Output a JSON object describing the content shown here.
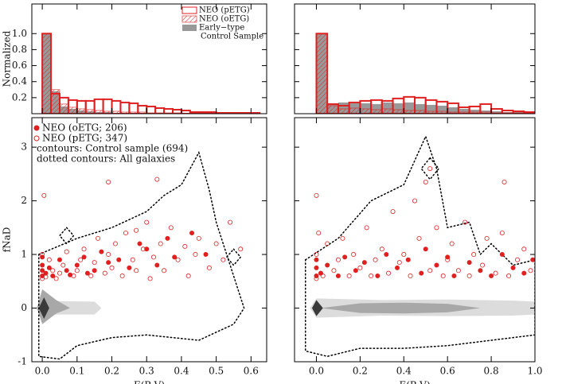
{
  "chart_data": [
    {
      "type": "histogram",
      "ylabel": "Normalized",
      "xlim": [
        -0.03,
        0.645
      ],
      "ylim": [
        0,
        1.37
      ],
      "xticks": [
        {
          "value": 0,
          "label": "0.0"
        },
        0.1,
        0.2,
        0.3,
        0.4,
        0.5,
        0.6
      ],
      "yticks": [
        0.2,
        0.4,
        0.6,
        0.8,
        {
          "value": 1,
          "label": "1.0"
        }
      ],
      "show_ytick_labels": true,
      "bins": [
        0,
        0.025,
        0.05,
        0.075,
        0.1,
        0.125,
        0.15,
        0.175,
        0.2,
        0.225,
        0.25,
        0.275,
        0.3,
        0.325,
        0.35,
        0.375,
        0.4,
        0.425,
        0.45,
        0.475,
        0.5,
        0.525,
        0.55,
        0.575,
        0.6,
        0.625
      ],
      "series": [
        {
          "name": [
            "Early−type",
            "Control Sample"
          ],
          "color": "#999999",
          "style": "filled",
          "values": [
            1.0,
            0.28,
            0.09,
            0.06,
            0.04,
            0.03,
            0.02,
            0.02,
            0.01,
            0.01,
            0.01,
            0.01,
            0.01,
            0,
            0,
            0,
            0,
            0,
            0,
            0,
            0,
            0,
            0,
            0,
            0
          ]
        },
        {
          "name": [
            "NEO (oETG)"
          ],
          "color": "#e02020",
          "style": "hatch",
          "values": [
            1.0,
            0.3,
            0.12,
            0.08,
            0.06,
            0.05,
            0.04,
            0.03,
            0.03,
            0.02,
            0.02,
            0.02,
            0.01,
            0.01,
            0.01,
            0.01,
            0,
            0,
            0,
            0,
            0,
            0,
            0,
            0,
            0
          ]
        },
        {
          "name": [
            "NEO (pETG)"
          ],
          "color": "#e02020",
          "style": "outline",
          "values": [
            1.0,
            0.25,
            0.2,
            0.17,
            0.16,
            0.16,
            0.18,
            0.18,
            0.16,
            0.14,
            0.13,
            0.1,
            0.09,
            0.07,
            0.06,
            0.05,
            0.04,
            0.02,
            0.02,
            0.02,
            0.01,
            0.01,
            0.01,
            0.01,
            0.01
          ]
        }
      ]
    },
    {
      "type": "histogram",
      "xlim": [
        -0.1,
        1.0
      ],
      "ylim": [
        0,
        1.37
      ],
      "xticks": [
        {
          "value": 0,
          "label": "0.0"
        },
        0.2,
        0.4,
        0.6,
        0.8,
        {
          "value": 1,
          "label": "1.0"
        }
      ],
      "yticks": [
        0.2,
        0.4,
        0.6,
        0.8,
        {
          "value": 1,
          "label": "1.0"
        }
      ],
      "show_ytick_labels": false,
      "bins": [
        0,
        0.05,
        0.1,
        0.15,
        0.2,
        0.25,
        0.3,
        0.35,
        0.4,
        0.45,
        0.5,
        0.55,
        0.6,
        0.65,
        0.7,
        0.75,
        0.8,
        0.85,
        0.9,
        0.95,
        1.0
      ],
      "series": [
        {
          "color": "#999999",
          "style": "filled",
          "values": [
            1.0,
            0.12,
            0.14,
            0.13,
            0.13,
            0.12,
            0.14,
            0.13,
            0.14,
            0.12,
            0.11,
            0.1,
            0.08,
            0.06,
            0.05,
            0.04,
            0.03,
            0.02,
            0.02,
            0.01
          ]
        },
        {
          "color": "#e02020",
          "style": "hatch",
          "values": [
            1.0,
            0.1,
            0.06,
            0.07,
            0.06,
            0.05,
            0.06,
            0.05,
            0.04,
            0.04,
            0.03,
            0.03,
            0.02,
            0.02,
            0.02,
            0.02,
            0.01,
            0.01,
            0.01,
            0.01
          ]
        },
        {
          "color": "#e02020",
          "style": "outline",
          "values": [
            1.0,
            0.12,
            0.1,
            0.14,
            0.16,
            0.17,
            0.16,
            0.19,
            0.21,
            0.2,
            0.17,
            0.15,
            0.13,
            0.08,
            0.09,
            0.12,
            0.06,
            0.04,
            0.03,
            0.02
          ]
        }
      ]
    },
    {
      "type": "scatter",
      "xlabel": "E(B-V)",
      "ylabel": "fNaD",
      "xlim": [
        -0.03,
        0.645
      ],
      "ylim": [
        -1,
        3.55
      ],
      "xticks": [
        {
          "value": 0,
          "label": "0.0"
        },
        0.1,
        0.2,
        0.3,
        0.4,
        0.5,
        0.6
      ],
      "yticks": [
        -1,
        0,
        1,
        2,
        3
      ],
      "show_ytick_labels": true,
      "annotations": [
        "contours: Control sample (694)",
        "dotted contours: All galaxies"
      ],
      "contours": [
        {
          "style": "filled",
          "color": "#dcdcdc",
          "x": [
            -0.02,
            0.0,
            0.05,
            0.15,
            0.17,
            0.15,
            0.05,
            0.0
          ],
          "y": [
            0,
            0.15,
            0.13,
            0.12,
            0,
            -0.12,
            -0.12,
            -0.15
          ]
        },
        {
          "style": "filled",
          "color": "#a8a8a8",
          "x": [
            -0.015,
            0.0,
            0.04,
            0.08,
            0.04,
            0.0
          ],
          "y": [
            0,
            0.35,
            0.15,
            0,
            -0.1,
            -0.3
          ]
        },
        {
          "style": "filled",
          "color": "#3a3a3a",
          "x": [
            -0.01,
            0.005,
            0.02,
            0.005
          ],
          "y": [
            0,
            0.2,
            0,
            -0.2
          ]
        },
        {
          "style": "dotted",
          "color": "#000000",
          "x": [
            -0.01,
            0.1,
            0.2,
            0.3,
            0.35,
            0.4,
            0.45,
            0.48,
            0.5,
            0.58,
            0.55,
            0.45,
            0.3,
            0.2,
            0.1,
            0.05,
            -0.01
          ],
          "y": [
            1.0,
            1.3,
            1.5,
            1.8,
            2.1,
            2.3,
            2.9,
            2.2,
            1.6,
            0.0,
            -0.3,
            -0.6,
            -0.5,
            -0.55,
            -0.7,
            -0.95,
            -0.9
          ]
        },
        {
          "style": "dotted",
          "color": "#000000",
          "x": [
            0.07,
            0.09,
            0.07,
            0.05
          ],
          "y": [
            1.5,
            1.35,
            1.2,
            1.35
          ]
        },
        {
          "style": "dotted",
          "color": "#000000",
          "x": [
            0.55,
            0.57,
            0.55,
            0.53
          ],
          "y": [
            1.1,
            0.95,
            0.8,
            0.95
          ]
        }
      ],
      "series": [
        {
          "name": "NEO (oETG; 206)",
          "color": "#e02020",
          "marker": "filled",
          "x": [
            0,
            0,
            0,
            0,
            0.01,
            0.02,
            0.03,
            0.05,
            0.07,
            0.08,
            0.1,
            0.12,
            0.13,
            0.15,
            0.17,
            0.19,
            0.22,
            0.25,
            0.28,
            0.3,
            0.33,
            0.36,
            0.38,
            0.43,
            0.47
          ],
          "y": [
            0.6,
            0.7,
            0.8,
            0.95,
            0.65,
            0.75,
            0.6,
            0.9,
            0.7,
            0.62,
            0.8,
            0.95,
            0.65,
            0.7,
            1.05,
            0.85,
            0.9,
            0.75,
            1.2,
            1.1,
            0.8,
            1.3,
            0.95,
            1.4,
            1.0
          ]
        },
        {
          "name": "NEO (pETG; 347)",
          "color": "#e02020",
          "marker": "open",
          "x": [
            0,
            0,
            0.005,
            0.01,
            0.02,
            0.03,
            0.04,
            0.05,
            0.06,
            0.07,
            0.09,
            0.1,
            0.11,
            0.12,
            0.14,
            0.15,
            0.16,
            0.18,
            0.19,
            0.2,
            0.21,
            0.23,
            0.24,
            0.26,
            0.27,
            0.29,
            0.3,
            0.31,
            0.32,
            0.34,
            0.35,
            0.37,
            0.39,
            0.41,
            0.42,
            0.44,
            0.45,
            0.48,
            0.5,
            0.52,
            0.54,
            0.57,
            0.33,
            0.19,
            0.27
          ],
          "y": [
            0.55,
            1.0,
            2.1,
            0.58,
            0.9,
            0.7,
            0.55,
            0.65,
            0.8,
            1.05,
            0.6,
            0.7,
            0.9,
            1.1,
            0.6,
            0.85,
            1.3,
            0.65,
            1.0,
            0.75,
            1.2,
            0.6,
            1.4,
            0.9,
            0.7,
            1.1,
            1.6,
            0.55,
            0.95,
            1.2,
            0.7,
            1.5,
            0.9,
            1.15,
            0.6,
            1.0,
            1.3,
            0.75,
            1.2,
            0.9,
            1.6,
            1.1,
            2.4,
            2.35,
            1.45
          ]
        }
      ]
    },
    {
      "type": "scatter",
      "xlabel": "E(B-V)",
      "xlim": [
        -0.1,
        1.0
      ],
      "ylim": [
        -1,
        3.55
      ],
      "xticks": [
        {
          "value": 0,
          "label": "0.0"
        },
        0.2,
        0.4,
        0.6,
        0.8,
        {
          "value": 1,
          "label": "1.0"
        }
      ],
      "yticks": [
        -1,
        0,
        1,
        2,
        3
      ],
      "show_ytick_labels": false,
      "contours": [
        {
          "style": "filled",
          "color": "#dcdcdc",
          "x": [
            -0.03,
            0.0,
            0.3,
            0.6,
            0.9,
            1.0,
            1.0,
            0.9,
            0.6,
            0.3,
            0.0
          ],
          "y": [
            0,
            0.18,
            0.15,
            0.16,
            0.14,
            0.12,
            -0.12,
            -0.14,
            -0.15,
            -0.14,
            -0.18
          ]
        },
        {
          "style": "filled",
          "color": "#a8a8a8",
          "x": [
            0.02,
            0.2,
            0.4,
            0.6,
            0.75,
            0.6,
            0.4,
            0.2
          ],
          "y": [
            0,
            0.09,
            0.1,
            0.08,
            0,
            -0.08,
            -0.1,
            -0.09
          ]
        },
        {
          "style": "filled",
          "color": "#3a3a3a",
          "x": [
            -0.02,
            0.0,
            0.03,
            0.0
          ],
          "y": [
            0,
            0.15,
            0,
            -0.15
          ]
        },
        {
          "style": "dotted",
          "color": "#000000",
          "x": [
            -0.05,
            0.1,
            0.25,
            0.4,
            0.5,
            0.55,
            0.6,
            0.7,
            0.75,
            0.8,
            0.9,
            1.0,
            1.0,
            0.8,
            0.6,
            0.4,
            0.2,
            0.05,
            -0.05
          ],
          "y": [
            0.9,
            1.3,
            2.0,
            2.3,
            3.2,
            2.6,
            1.5,
            1.6,
            1.0,
            1.2,
            0.8,
            0.9,
            -0.5,
            -0.6,
            -0.7,
            -0.75,
            -0.75,
            -0.9,
            -0.8
          ]
        },
        {
          "style": "dotted",
          "color": "#000000",
          "x": [
            0.52,
            0.56,
            0.52,
            0.48
          ],
          "y": [
            2.8,
            2.6,
            2.4,
            2.6
          ]
        }
      ],
      "series": [
        {
          "color": "#e02020",
          "marker": "filled",
          "x": [
            0,
            0,
            0,
            0.02,
            0.05,
            0.1,
            0.13,
            0.18,
            0.22,
            0.28,
            0.32,
            0.37,
            0.42,
            0.48,
            0.5,
            0.55,
            0.6,
            0.63,
            0.7,
            0.75,
            0.8,
            0.85,
            0.9,
            0.95,
            0.99
          ],
          "y": [
            0.6,
            0.75,
            0.9,
            0.65,
            0.8,
            0.6,
            0.95,
            0.7,
            0.85,
            0.6,
            1.0,
            0.75,
            0.9,
            0.65,
            1.1,
            0.8,
            0.95,
            0.6,
            0.85,
            0.7,
            0.6,
            1.0,
            0.75,
            0.65,
            0.9
          ]
        },
        {
          "color": "#e02020",
          "marker": "open",
          "x": [
            0,
            0,
            0,
            0.01,
            0.03,
            0.05,
            0.08,
            0.1,
            0.12,
            0.15,
            0.17,
            0.2,
            0.23,
            0.25,
            0.27,
            0.3,
            0.33,
            0.35,
            0.38,
            0.4,
            0.43,
            0.45,
            0.47,
            0.5,
            0.52,
            0.55,
            0.58,
            0.6,
            0.62,
            0.65,
            0.68,
            0.7,
            0.72,
            0.76,
            0.78,
            0.82,
            0.85,
            0.88,
            0.92,
            0.95,
            0.98,
            0.86,
            0.52
          ],
          "y": [
            0.55,
            1.0,
            2.1,
            1.4,
            0.6,
            1.2,
            0.7,
            0.9,
            1.3,
            0.6,
            1.0,
            0.75,
            1.5,
            0.6,
            0.9,
            1.1,
            0.65,
            1.8,
            0.85,
            1.0,
            0.6,
            2.0,
            1.3,
            2.35,
            0.7,
            1.5,
            0.6,
            0.9,
            1.2,
            0.7,
            1.6,
            0.6,
            1.0,
            0.8,
            1.3,
            0.65,
            1.4,
            0.6,
            0.9,
            1.1,
            0.7,
            2.35,
            2.6
          ]
        }
      ]
    }
  ]
}
